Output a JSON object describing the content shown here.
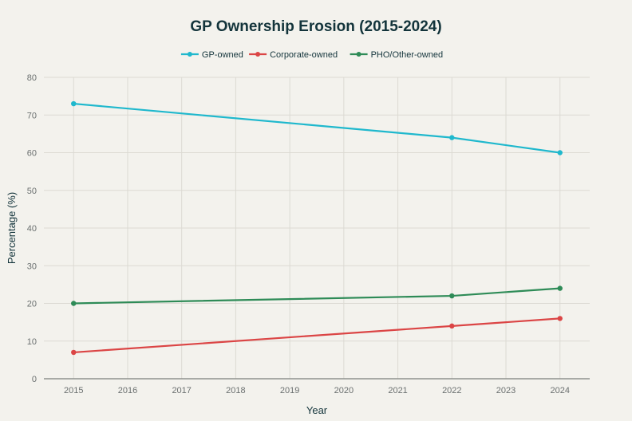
{
  "chart_data": {
    "type": "line",
    "title": "GP Ownership Erosion (2015-2024)",
    "xlabel": "Year",
    "ylabel": "Percentage (%)",
    "x_ticks": [
      "2015",
      "2016",
      "2017",
      "2018",
      "2019",
      "2020",
      "2021",
      "2022",
      "2023",
      "2024"
    ],
    "y_ticks": [
      "0",
      "10",
      "20",
      "30",
      "40",
      "50",
      "60",
      "70",
      "80"
    ],
    "xlim": [
      2014.45,
      2024.55
    ],
    "ylim": [
      0,
      80
    ],
    "grid": true,
    "legend_position": "top-center",
    "series": [
      {
        "name": "GP-owned",
        "color": "#1fb8cd",
        "x": [
          2015,
          2022,
          2024
        ],
        "values": [
          73,
          64,
          60
        ]
      },
      {
        "name": "Corporate-owned",
        "color": "#db4545",
        "x": [
          2015,
          2022,
          2024
        ],
        "values": [
          7,
          14,
          16
        ]
      },
      {
        "name": "PHO/Other-owned",
        "color": "#2e8b57",
        "x": [
          2015,
          2022,
          2024
        ],
        "values": [
          20,
          22,
          24
        ]
      }
    ]
  }
}
